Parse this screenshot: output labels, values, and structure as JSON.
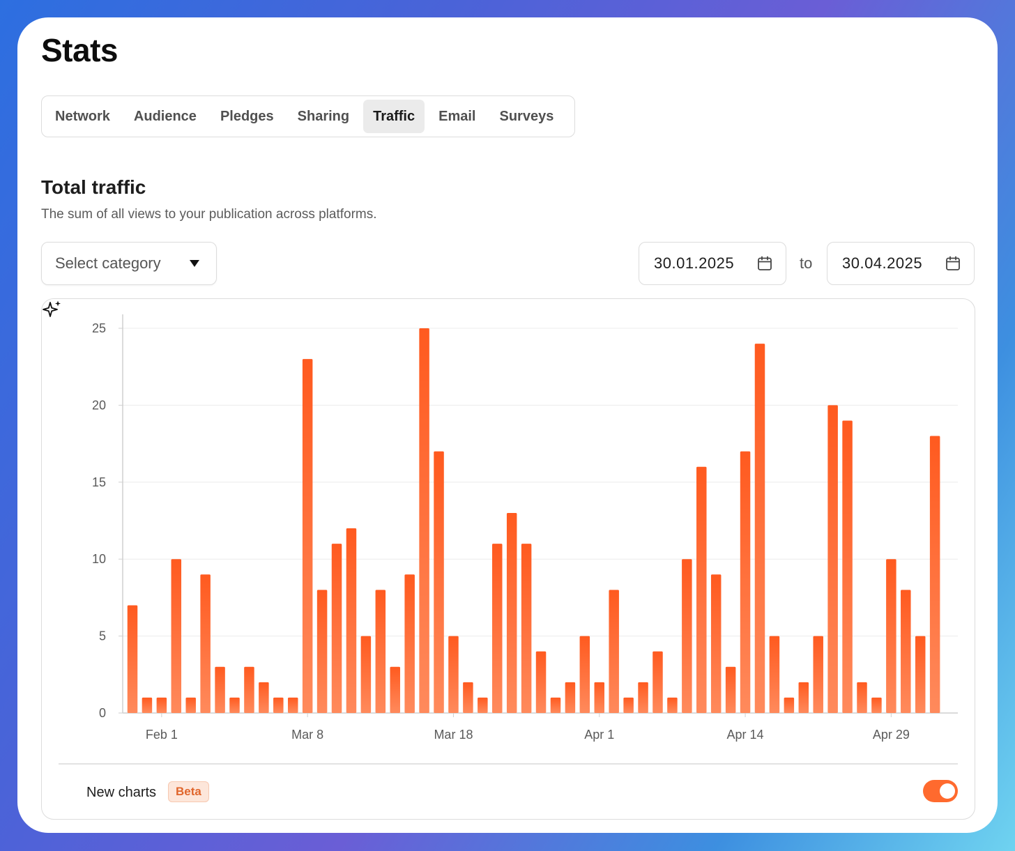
{
  "page": {
    "title": "Stats",
    "tabs": [
      {
        "label": "Network"
      },
      {
        "label": "Audience"
      },
      {
        "label": "Pledges"
      },
      {
        "label": "Sharing"
      },
      {
        "label": "Traffic",
        "active": true
      },
      {
        "label": "Email"
      },
      {
        "label": "Surveys"
      }
    ],
    "section": {
      "title": "Total traffic",
      "description": "The sum of all views to your publication across platforms."
    },
    "filters": {
      "category_placeholder": "Select category",
      "date_from": "30.01.2025",
      "to_label": "to",
      "date_to": "30.04.2025"
    },
    "footer": {
      "new_charts_label": "New charts",
      "beta_badge": "Beta",
      "toggle_on": true
    },
    "colors": {
      "bar_top": "#ff5a1f",
      "bar_bottom": "#ff8a5c",
      "accent": "#ff6a2e"
    },
    "icons": [
      "chevron-down-icon",
      "calendar-icon",
      "sparkles-icon"
    ]
  },
  "chart_data": {
    "type": "bar",
    "title": "",
    "xlabel": "",
    "ylabel": "",
    "ylim": [
      0,
      25
    ],
    "yticks": [
      0,
      5,
      10,
      15,
      20,
      25
    ],
    "x_tick_labels": [
      {
        "label": "Feb 1",
        "index": 2
      },
      {
        "label": "Mar 8",
        "index": 12
      },
      {
        "label": "Mar 18",
        "index": 22
      },
      {
        "label": "Apr 1",
        "index": 32
      },
      {
        "label": "Apr 14",
        "index": 42
      },
      {
        "label": "Apr 29",
        "index": 52
      }
    ],
    "grid": true,
    "values": [
      7,
      1,
      1,
      10,
      1,
      9,
      3,
      1,
      3,
      2,
      1,
      1,
      23,
      8,
      11,
      12,
      5,
      8,
      3,
      9,
      25,
      17,
      5,
      2,
      1,
      11,
      13,
      11,
      4,
      1,
      2,
      5,
      2,
      8,
      1,
      2,
      4,
      1,
      10,
      16,
      9,
      3,
      17,
      24,
      5,
      1,
      2,
      5,
      20,
      19,
      2,
      1,
      10,
      8,
      5,
      18
    ]
  }
}
